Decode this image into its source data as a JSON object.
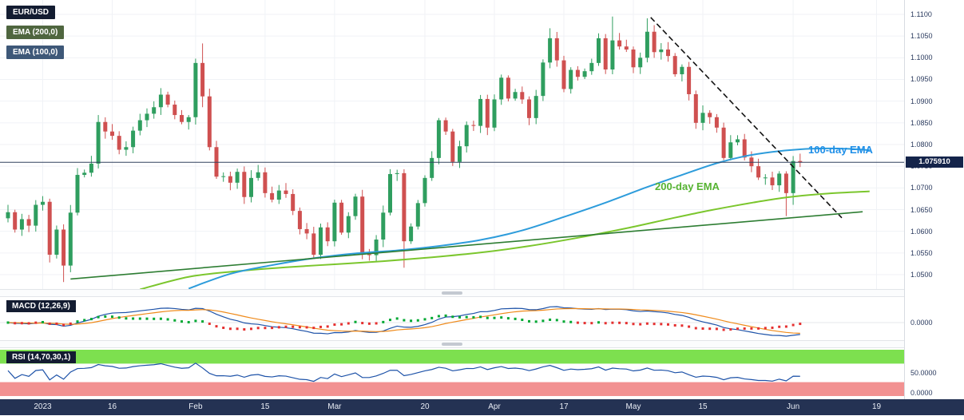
{
  "legend": [
    {
      "label": "EUR/USD",
      "bg": "#131c31"
    },
    {
      "label": "EMA (200,0)",
      "bg": "#4f663f"
    },
    {
      "label": "EMA (100,0)",
      "bg": "#3e5878"
    }
  ],
  "annotations": {
    "ema100_text": "100-day EMA",
    "ema200_text": "200-day EMA"
  },
  "price_axis": {
    "ticks": [
      "1.1100",
      "1.1050",
      "1.1000",
      "1.0950",
      "1.0900",
      "1.0850",
      "1.0800",
      "1.0750",
      "1.0700",
      "1.0650",
      "1.0600",
      "1.0550",
      "1.0500"
    ],
    "current": {
      "value": 1.07591,
      "text": "1.075910"
    }
  },
  "time_axis": {
    "ticks": [
      {
        "text": "2023",
        "idx": 5
      },
      {
        "text": "16",
        "idx": 15
      },
      {
        "text": "Feb",
        "idx": 27
      },
      {
        "text": "15",
        "idx": 37
      },
      {
        "text": "Mar",
        "idx": 47
      },
      {
        "text": "20",
        "idx": 60
      },
      {
        "text": "Apr",
        "idx": 70
      },
      {
        "text": "17",
        "idx": 80
      },
      {
        "text": "May",
        "idx": 90
      },
      {
        "text": "15",
        "idx": 100
      },
      {
        "text": "Jun",
        "idx": 113
      },
      {
        "text": "19",
        "idx": 125
      }
    ]
  },
  "panels": {
    "macd": {
      "label": "MACD (12,26,9)",
      "zero_label": "0.0000"
    },
    "rsi": {
      "label": "RSI (14,70,30,1)",
      "mid_label": "50.0000",
      "bottom_label": "0.0000"
    }
  },
  "colors": {
    "up": "#2f9e5f",
    "down": "#cf5050",
    "ema100": "#2d9cdb",
    "ema200": "#7bc62d",
    "support": "#2d7d32",
    "dashed": "#111111",
    "price_line": "#30415f",
    "badge_bg": "#14244a",
    "macd": "#1d52a8",
    "signal": "#ef8a1a",
    "hist_up": "#00a832",
    "hist_down": "#e53030",
    "rsi": "#1d52a8",
    "ob_band": "#7de04f",
    "os_band": "#f29191",
    "axis_bar": "#243253",
    "grid": "#f0f2f6",
    "axis_text": "#2a3a5e"
  },
  "chart_data": {
    "type": "candlestick",
    "symbol": "EUR/USD",
    "current_price": 1.07591,
    "first_open": 1.063,
    "closes": [
      1.0644,
      1.0604,
      1.0628,
      1.0613,
      1.0661,
      1.0668,
      1.0546,
      1.0604,
      1.0521,
      1.0643,
      1.073,
      1.0735,
      1.0756,
      1.0852,
      1.083,
      1.082,
      1.0788,
      1.0794,
      1.0832,
      1.0856,
      1.0871,
      1.0886,
      1.0915,
      1.0892,
      1.0868,
      1.0852,
      1.0863,
      1.0988,
      1.0911,
      1.0794,
      1.0726,
      1.0727,
      1.0712,
      1.0737,
      1.0679,
      1.0723,
      1.0736,
      1.0688,
      1.0673,
      1.0694,
      1.0686,
      1.0647,
      1.0605,
      1.0595,
      1.0546,
      1.0609,
      1.0577,
      1.0666,
      1.0597,
      1.0635,
      1.068,
      1.0547,
      1.0545,
      1.0581,
      1.0643,
      1.0732,
      1.0734,
      1.0577,
      1.0611,
      1.0665,
      1.0723,
      1.0769,
      1.0856,
      1.083,
      1.076,
      1.0796,
      1.0845,
      1.0843,
      1.0905,
      1.0839,
      1.0904,
      1.0954,
      1.0906,
      1.0921,
      1.0904,
      1.0861,
      1.0912,
      1.0989,
      1.1045,
      1.0994,
      1.0928,
      1.0972,
      1.0956,
      1.0969,
      1.0988,
      1.1045,
      1.0973,
      1.104,
      1.1026,
      1.1019,
      1.0978,
      1.1,
      1.106,
      1.1013,
      1.1019,
      1.1004,
      1.0962,
      1.0979,
      1.0916,
      1.085,
      1.0873,
      1.0863,
      1.0839,
      1.0769,
      1.0805,
      1.0812,
      1.077,
      1.075,
      1.0724,
      1.0724,
      1.0706,
      1.0733,
      1.0688,
      1.0762,
      1.0759
    ],
    "wick_overrides": {
      "8": {
        "l": 1.0483
      },
      "13": {
        "h": 1.0868
      },
      "22": {
        "h": 1.093
      },
      "27": {
        "h": 1.0998
      },
      "28": {
        "h": 1.1033,
        "l": 1.0886
      },
      "44": {
        "l": 1.0536
      },
      "57": {
        "l": 1.0516
      },
      "78": {
        "h": 1.1068
      },
      "87": {
        "h": 1.1095
      },
      "92": {
        "h": 1.1091
      },
      "112": {
        "l": 1.0635
      },
      "113": {
        "l": 1.0661
      },
      "114": {
        "h": 1.0779
      }
    },
    "y_ticks": [
      1.11,
      1.105,
      1.1,
      1.095,
      1.09,
      1.085,
      1.08,
      1.075,
      1.07,
      1.065,
      1.06,
      1.055,
      1.05
    ],
    "overlays": {
      "ema100_points": [
        [
          26,
          1.0468
        ],
        [
          32,
          1.0502
        ],
        [
          38,
          1.0522
        ],
        [
          44,
          1.0538
        ],
        [
          50,
          1.0549
        ],
        [
          56,
          1.0556
        ],
        [
          62,
          1.0566
        ],
        [
          68,
          1.058
        ],
        [
          74,
          1.0602
        ],
        [
          80,
          1.0633
        ],
        [
          86,
          1.0666
        ],
        [
          92,
          1.0702
        ],
        [
          97,
          1.073
        ],
        [
          102,
          1.0757
        ],
        [
          106,
          1.0773
        ],
        [
          110,
          1.0783
        ],
        [
          114,
          1.0789
        ],
        [
          118,
          1.0791
        ],
        [
          121,
          1.079
        ],
        [
          124,
          1.0787
        ]
      ],
      "ema200_points": [
        [
          19,
          1.0466
        ],
        [
          26,
          1.0495
        ],
        [
          33,
          1.0508
        ],
        [
          40,
          1.0517
        ],
        [
          47,
          1.0524
        ],
        [
          54,
          1.0531
        ],
        [
          61,
          1.054
        ],
        [
          68,
          1.0551
        ],
        [
          75,
          1.0566
        ],
        [
          82,
          1.0585
        ],
        [
          89,
          1.0607
        ],
        [
          95,
          1.0628
        ],
        [
          100,
          1.0645
        ],
        [
          105,
          1.066
        ],
        [
          109,
          1.0671
        ],
        [
          113,
          1.068
        ],
        [
          118,
          1.0687
        ],
        [
          124,
          1.0692
        ]
      ],
      "support_trendline": [
        [
          9,
          1.049
        ],
        [
          123,
          1.0645
        ]
      ],
      "resistance_trendline_dashed": [
        [
          92.5,
          1.1093
        ],
        [
          120,
          1.0631
        ]
      ]
    },
    "indicators": {
      "macd_params": [
        12,
        26,
        9
      ],
      "rsi_params": [
        14,
        70,
        30,
        1
      ]
    }
  }
}
